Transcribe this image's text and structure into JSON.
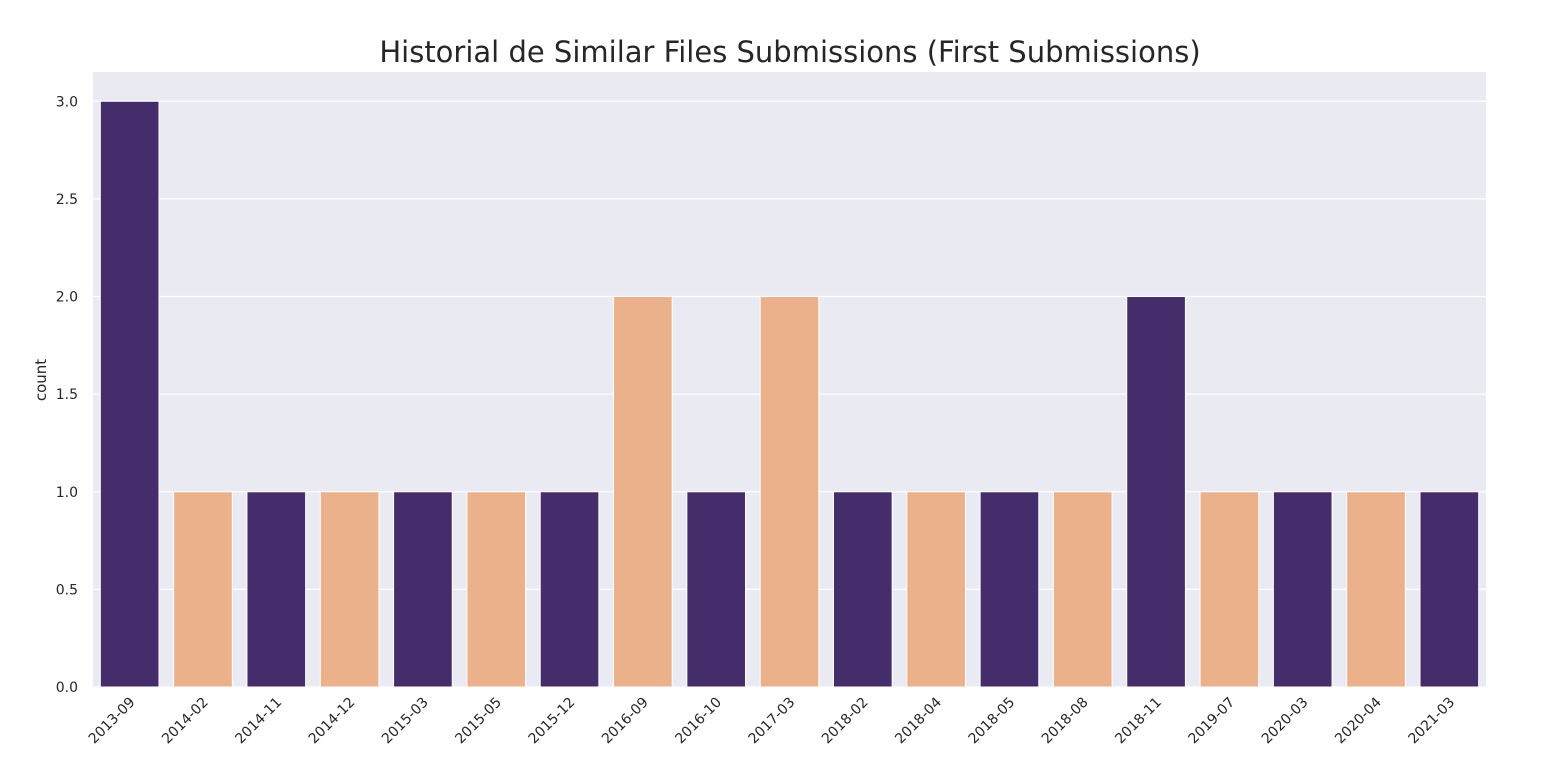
{
  "chart_data": {
    "type": "bar",
    "title": "Historial de Similar Files Submissions (First Submissions)",
    "xlabel": "",
    "ylabel": "count",
    "ylim": [
      0,
      3.15
    ],
    "yticks": [
      "0.0",
      "0.5",
      "1.0",
      "1.5",
      "2.0",
      "2.5",
      "3.0"
    ],
    "grid": true,
    "categories": [
      "2013-09",
      "2014-02",
      "2014-11",
      "2014-12",
      "2015-03",
      "2015-05",
      "2015-12",
      "2016-09",
      "2016-10",
      "2017-03",
      "2018-02",
      "2018-04",
      "2018-05",
      "2018-08",
      "2018-11",
      "2019-07",
      "2020-03",
      "2020-04",
      "2021-03"
    ],
    "values": [
      3,
      1,
      1,
      1,
      1,
      1,
      1,
      2,
      1,
      2,
      1,
      1,
      1,
      1,
      2,
      1,
      1,
      1,
      1
    ],
    "colors": [
      "#452c6a",
      "#ebb18b"
    ],
    "background": "#eaeaf2",
    "grid_color": "#ffffff"
  }
}
